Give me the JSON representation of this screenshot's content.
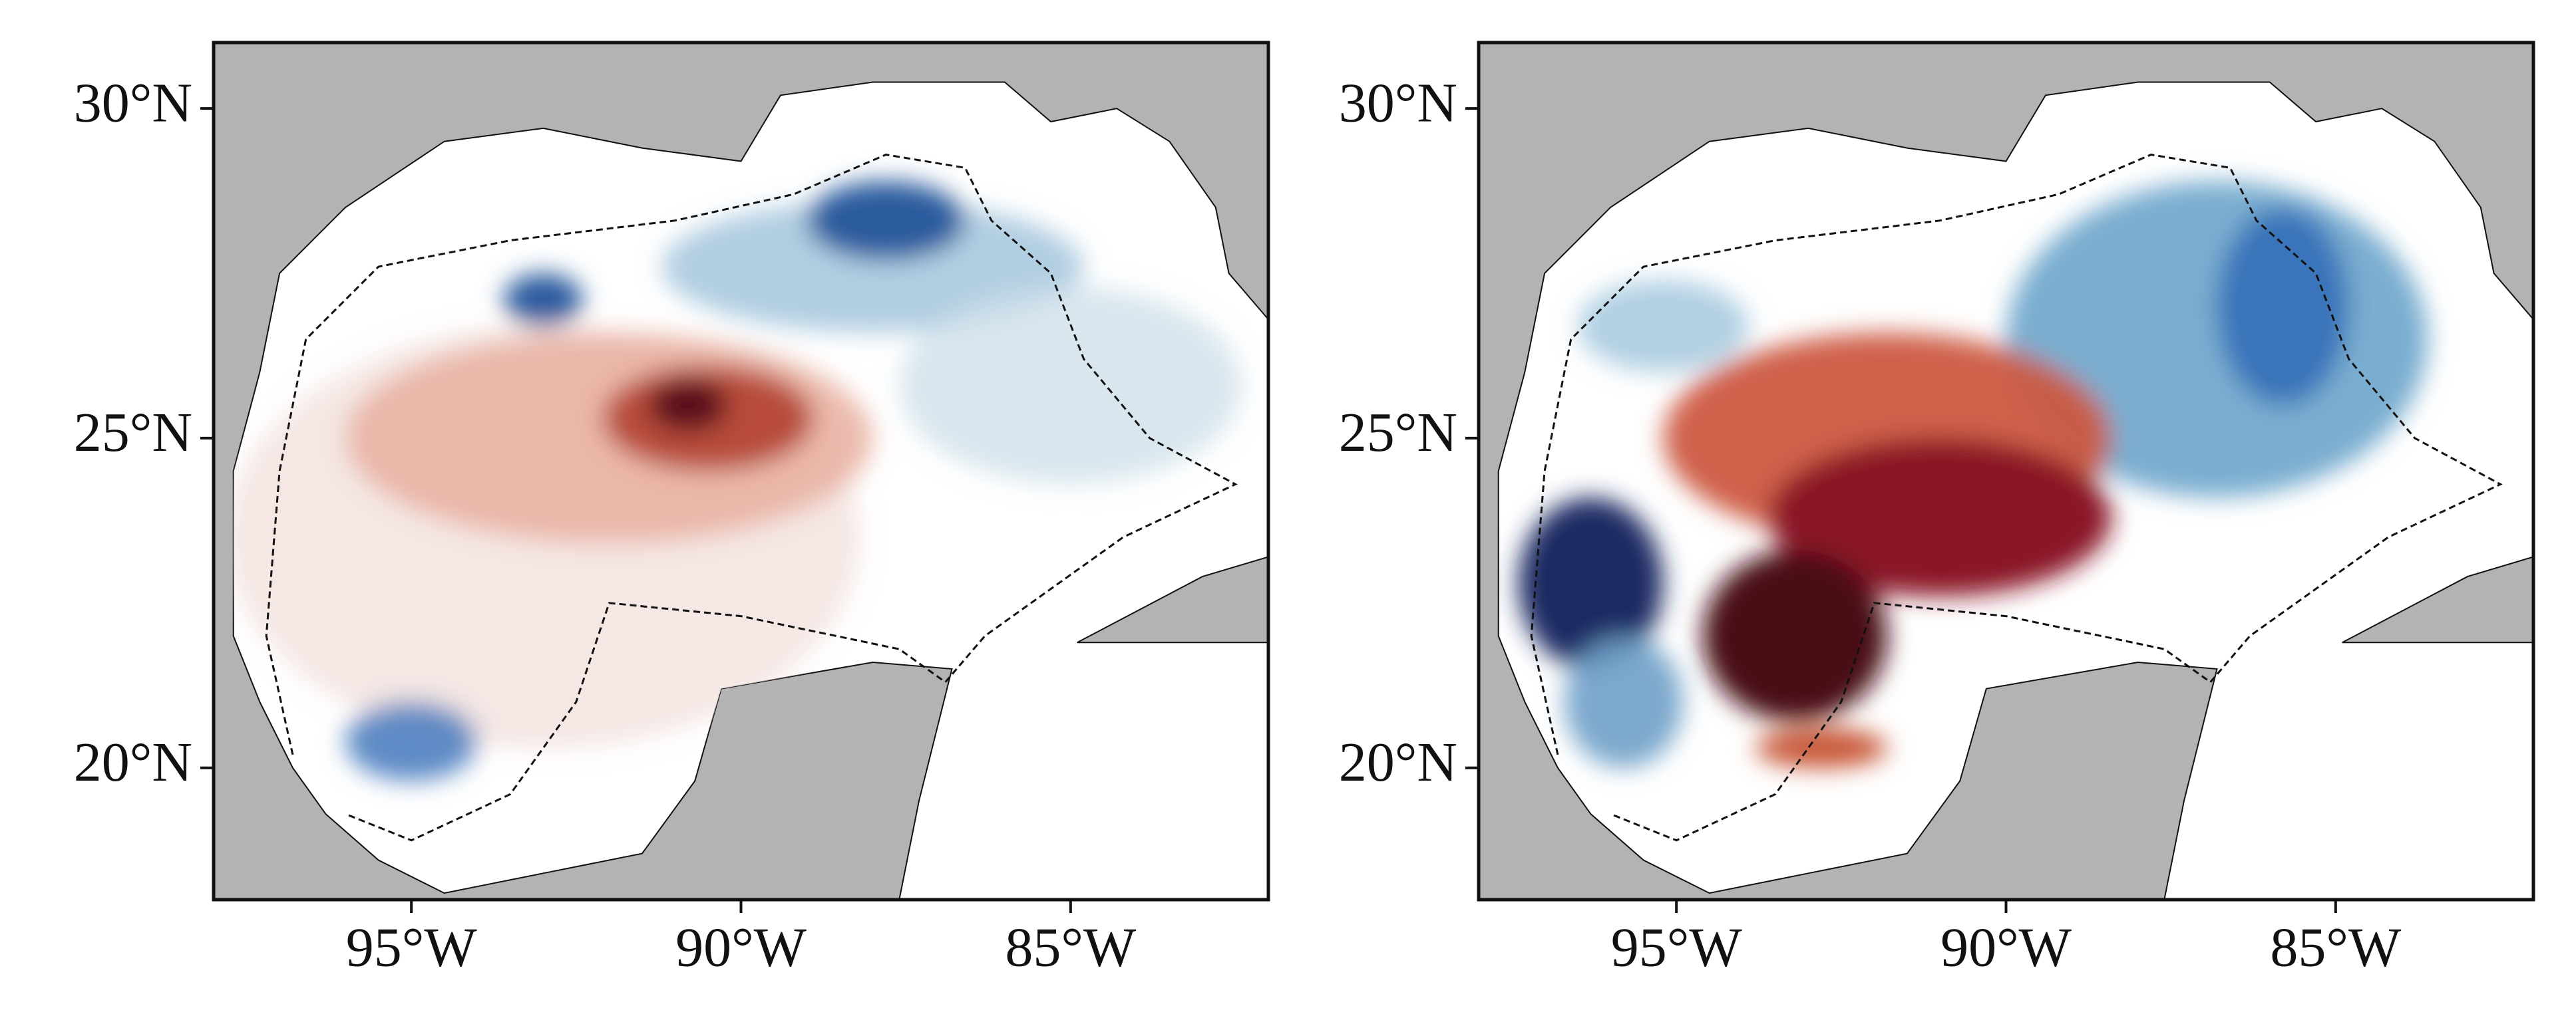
{
  "maps": [
    {
      "xlim": [
        -98,
        -82
      ],
      "ylim": [
        18,
        31
      ],
      "xticks": [
        {
          "value": -95,
          "label": "95°W"
        },
        {
          "value": -90,
          "label": "90°W"
        },
        {
          "value": -85,
          "label": "85°W"
        }
      ],
      "yticks": [
        {
          "value": 20,
          "label": "20°N"
        },
        {
          "value": 25,
          "label": "25°N"
        },
        {
          "value": 30,
          "label": "30°N"
        }
      ]
    },
    {
      "xlim": [
        -98,
        -82
      ],
      "ylim": [
        18,
        31
      ],
      "xticks": [
        {
          "value": -95,
          "label": "95°W"
        },
        {
          "value": -90,
          "label": "90°W"
        },
        {
          "value": -85,
          "label": "85°W"
        }
      ],
      "yticks": [
        {
          "value": 20,
          "label": "20°N"
        },
        {
          "value": 25,
          "label": "25°N"
        },
        {
          "value": 30,
          "label": "30°N"
        }
      ]
    }
  ]
}
